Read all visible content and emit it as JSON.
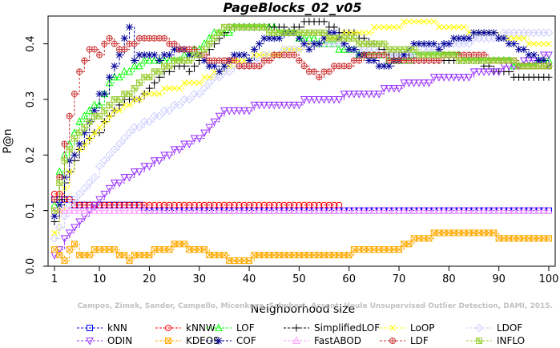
{
  "chart_data": {
    "type": "line",
    "title": "PageBlocks_02_v05",
    "xlabel": "Neighborhood size",
    "ylabel": "P@n",
    "xlim": [
      1,
      100
    ],
    "ylim": [
      0,
      0.45
    ],
    "xticks": [
      1,
      10,
      20,
      30,
      40,
      50,
      60,
      70,
      80,
      90,
      100
    ],
    "yticks": [
      0.0,
      0.1,
      0.2,
      0.3,
      0.4
    ],
    "xtick_labels": [
      "1",
      "10",
      "20",
      "30",
      "40",
      "50",
      "60",
      "70",
      "80",
      "90",
      "100"
    ],
    "ytick_labels": [
      "0.0",
      "0.1",
      "0.2",
      "0.3",
      "0.4"
    ],
    "grid": false,
    "legend_position": "bottom",
    "watermark": "Campos, Zimek, Sander, Campello, Micenkova, Schubert, Assent, Houle Unsupervised Outlier Detection, DAMI, 2015.",
    "series": [
      {
        "name": "kNN",
        "color": "#0000ff",
        "marker": "square",
        "x": [
          1,
          4,
          5,
          8,
          10,
          15,
          18,
          19,
          20,
          30,
          40,
          50,
          60,
          70,
          80,
          90,
          100
        ],
        "values": [
          0.12,
          0.12,
          0.11,
          0.11,
          0.11,
          0.11,
          0.11,
          0.1,
          0.1,
          0.1,
          0.1,
          0.1,
          0.1,
          0.1,
          0.1,
          0.1,
          0.1
        ]
      },
      {
        "name": "kNNW",
        "color": "#ff0000",
        "marker": "circle",
        "x": [
          1,
          4,
          5,
          8,
          10,
          15,
          20,
          25,
          30,
          35,
          40,
          45,
          50,
          55,
          58
        ],
        "values": [
          0.13,
          0.12,
          0.11,
          0.11,
          0.11,
          0.11,
          0.11,
          0.11,
          0.11,
          0.11,
          0.11,
          0.11,
          0.11,
          0.11,
          0.11
        ]
      },
      {
        "name": "LOF",
        "color": "#00ff00",
        "marker": "triangle-up",
        "x": [
          1,
          2,
          3,
          4,
          5,
          6,
          7,
          8,
          10,
          12,
          14,
          16,
          18,
          20,
          22,
          25,
          28,
          30,
          32,
          34,
          36,
          38,
          40,
          42,
          44,
          46,
          48,
          50,
          52,
          54,
          56,
          58,
          60,
          62,
          64,
          66,
          68,
          70,
          75,
          80,
          85,
          90,
          95,
          100
        ],
        "values": [
          0.11,
          0.17,
          0.2,
          0.22,
          0.24,
          0.26,
          0.27,
          0.28,
          0.29,
          0.33,
          0.34,
          0.35,
          0.36,
          0.37,
          0.37,
          0.37,
          0.38,
          0.39,
          0.41,
          0.42,
          0.42,
          0.43,
          0.43,
          0.43,
          0.43,
          0.42,
          0.42,
          0.41,
          0.41,
          0.4,
          0.4,
          0.39,
          0.39,
          0.38,
          0.38,
          0.38,
          0.37,
          0.37,
          0.38,
          0.38,
          0.37,
          0.37,
          0.36,
          0.37
        ]
      },
      {
        "name": "SimplifiedLOF",
        "color": "#000000",
        "marker": "plus",
        "x": [
          1,
          2,
          3,
          4,
          5,
          6,
          7,
          8,
          10,
          12,
          14,
          16,
          18,
          20,
          22,
          24,
          26,
          28,
          30,
          32,
          34,
          36,
          38,
          40,
          42,
          44,
          46,
          48,
          50,
          52,
          54,
          56,
          58,
          60,
          62,
          64,
          66,
          68,
          70,
          75,
          80,
          85,
          90,
          95,
          100
        ],
        "values": [
          0.08,
          0.12,
          0.15,
          0.17,
          0.19,
          0.21,
          0.22,
          0.23,
          0.24,
          0.27,
          0.29,
          0.3,
          0.3,
          0.32,
          0.34,
          0.35,
          0.36,
          0.35,
          0.37,
          0.39,
          0.41,
          0.43,
          0.43,
          0.43,
          0.43,
          0.43,
          0.43,
          0.42,
          0.43,
          0.44,
          0.44,
          0.43,
          0.42,
          0.42,
          0.41,
          0.4,
          0.39,
          0.38,
          0.38,
          0.37,
          0.37,
          0.37,
          0.35,
          0.34,
          0.34
        ]
      },
      {
        "name": "LoOP",
        "color": "#ffff00",
        "marker": "x",
        "x": [
          1,
          2,
          3,
          4,
          5,
          6,
          8,
          10,
          12,
          14,
          16,
          18,
          20,
          22,
          24,
          26,
          28,
          30,
          32,
          34,
          36,
          38,
          40,
          42,
          44,
          46,
          48,
          50,
          52,
          54,
          56,
          58,
          60,
          62,
          64,
          66,
          68,
          70,
          72,
          74,
          76,
          78,
          80,
          82,
          84,
          86,
          88,
          90,
          92,
          94,
          96,
          98,
          100
        ],
        "values": [
          0.06,
          0.1,
          0.14,
          0.17,
          0.2,
          0.21,
          0.23,
          0.25,
          0.27,
          0.28,
          0.29,
          0.3,
          0.31,
          0.31,
          0.32,
          0.32,
          0.33,
          0.33,
          0.34,
          0.35,
          0.36,
          0.37,
          0.37,
          0.38,
          0.38,
          0.38,
          0.39,
          0.39,
          0.4,
          0.4,
          0.41,
          0.41,
          0.42,
          0.42,
          0.42,
          0.43,
          0.43,
          0.43,
          0.44,
          0.44,
          0.44,
          0.43,
          0.43,
          0.43,
          0.42,
          0.42,
          0.42,
          0.41,
          0.41,
          0.41,
          0.4,
          0.4,
          0.4
        ]
      },
      {
        "name": "LDOF",
        "color": "#ccccff",
        "marker": "diamond",
        "x": [
          1,
          2,
          3,
          4,
          6,
          8,
          10,
          12,
          14,
          16,
          18,
          20,
          22,
          24,
          26,
          28,
          30,
          32,
          34,
          36,
          38,
          40,
          42,
          44,
          46,
          48,
          50,
          52,
          54,
          56,
          58,
          60,
          62,
          64,
          66,
          68,
          70,
          72,
          74,
          76,
          78,
          80,
          82,
          84,
          86,
          88,
          90,
          92,
          94,
          96,
          98,
          100
        ],
        "values": [
          0.05,
          0.07,
          0.09,
          0.11,
          0.13,
          0.15,
          0.18,
          0.2,
          0.22,
          0.24,
          0.25,
          0.26,
          0.27,
          0.28,
          0.29,
          0.3,
          0.31,
          0.33,
          0.34,
          0.35,
          0.36,
          0.36,
          0.37,
          0.38,
          0.38,
          0.39,
          0.39,
          0.4,
          0.4,
          0.4,
          0.4,
          0.39,
          0.39,
          0.39,
          0.38,
          0.38,
          0.38,
          0.38,
          0.38,
          0.39,
          0.39,
          0.4,
          0.4,
          0.4,
          0.41,
          0.41,
          0.41,
          0.42,
          0.42,
          0.42,
          0.42,
          0.42
        ]
      },
      {
        "name": "ODIN",
        "color": "#9933ff",
        "marker": "triangle-down",
        "x": [
          1,
          2,
          3,
          4,
          5,
          6,
          7,
          8,
          10,
          12,
          14,
          16,
          18,
          20,
          22,
          24,
          26,
          28,
          30,
          32,
          34,
          36,
          38,
          40,
          42,
          44,
          46,
          48,
          50,
          52,
          54,
          56,
          58,
          60,
          62,
          64,
          66,
          68,
          70,
          72,
          74,
          76,
          78,
          80,
          82,
          84,
          86,
          88,
          90,
          92,
          94,
          96,
          98,
          100
        ],
        "values": [
          0.02,
          0.03,
          0.05,
          0.06,
          0.07,
          0.08,
          0.09,
          0.1,
          0.12,
          0.14,
          0.15,
          0.16,
          0.17,
          0.18,
          0.19,
          0.2,
          0.21,
          0.22,
          0.23,
          0.25,
          0.27,
          0.28,
          0.28,
          0.28,
          0.29,
          0.29,
          0.29,
          0.29,
          0.29,
          0.3,
          0.3,
          0.3,
          0.3,
          0.31,
          0.31,
          0.31,
          0.31,
          0.32,
          0.32,
          0.33,
          0.33,
          0.33,
          0.34,
          0.34,
          0.34,
          0.34,
          0.35,
          0.35,
          0.35,
          0.36,
          0.36,
          0.37,
          0.37,
          0.38
        ]
      },
      {
        "name": "KDEOS",
        "color": "#ffaa00",
        "marker": "square-x",
        "x": [
          1,
          2,
          3,
          4,
          5,
          6,
          8,
          10,
          12,
          14,
          16,
          18,
          20,
          22,
          24,
          26,
          28,
          30,
          32,
          34,
          36,
          38,
          40,
          42,
          44,
          46,
          48,
          50,
          52,
          54,
          56,
          58,
          60,
          62,
          64,
          66,
          68,
          70,
          72,
          74,
          76,
          78,
          80,
          82,
          84,
          86,
          88,
          90,
          92,
          94,
          96,
          98,
          100
        ],
        "values": [
          0.03,
          0.02,
          0.01,
          0.03,
          0.04,
          0.02,
          0.02,
          0.03,
          0.03,
          0.02,
          0.01,
          0.02,
          0.02,
          0.03,
          0.03,
          0.04,
          0.03,
          0.03,
          0.02,
          0.02,
          0.01,
          0.01,
          0.01,
          0.02,
          0.02,
          0.02,
          0.02,
          0.02,
          0.02,
          0.02,
          0.02,
          0.02,
          0.02,
          0.03,
          0.03,
          0.03,
          0.03,
          0.03,
          0.04,
          0.05,
          0.05,
          0.06,
          0.06,
          0.06,
          0.06,
          0.06,
          0.06,
          0.05,
          0.05,
          0.05,
          0.05,
          0.05,
          0.05
        ]
      },
      {
        "name": "COF",
        "color": "#000099",
        "marker": "asterisk",
        "x": [
          1,
          2,
          3,
          4,
          5,
          6,
          7,
          8,
          9,
          10,
          11,
          12,
          13,
          14,
          15,
          16,
          17,
          18,
          20,
          22,
          24,
          26,
          28,
          30,
          32,
          34,
          36,
          38,
          40,
          42,
          44,
          46,
          48,
          50,
          52,
          54,
          56,
          58,
          60,
          62,
          64,
          66,
          68,
          70,
          72,
          74,
          76,
          78,
          80,
          82,
          84,
          86,
          88,
          90,
          92,
          94,
          96,
          98,
          100
        ],
        "values": [
          0.09,
          0.11,
          0.16,
          0.19,
          0.2,
          0.22,
          0.24,
          0.26,
          0.28,
          0.31,
          0.31,
          0.34,
          0.36,
          0.38,
          0.41,
          0.43,
          0.37,
          0.38,
          0.38,
          0.37,
          0.38,
          0.39,
          0.38,
          0.38,
          0.36,
          0.35,
          0.37,
          0.38,
          0.37,
          0.4,
          0.41,
          0.41,
          0.42,
          0.41,
          0.39,
          0.4,
          0.42,
          0.41,
          0.39,
          0.38,
          0.37,
          0.36,
          0.36,
          0.37,
          0.39,
          0.4,
          0.4,
          0.39,
          0.4,
          0.41,
          0.41,
          0.42,
          0.42,
          0.41,
          0.4,
          0.39,
          0.38,
          0.37,
          0.36
        ]
      },
      {
        "name": "FastABOD",
        "color": "#ff99ff",
        "marker": "triangle-open",
        "x": [
          1,
          5,
          10,
          15,
          20,
          30,
          40,
          50,
          60,
          70,
          80,
          90,
          100
        ],
        "values": [
          0.1,
          0.1,
          0.1,
          0.1,
          0.1,
          0.1,
          0.1,
          0.1,
          0.1,
          0.1,
          0.1,
          0.1,
          0.1
        ]
      },
      {
        "name": "LDF",
        "color": "#cc3333",
        "marker": "circle-plus",
        "x": [
          1,
          2,
          3,
          4,
          5,
          6,
          7,
          8,
          9,
          10,
          11,
          12,
          13,
          14,
          15,
          16,
          17,
          18,
          20,
          22,
          24,
          26,
          28,
          30,
          32,
          34,
          36,
          38,
          40,
          42,
          44,
          46,
          48,
          50,
          52,
          54,
          56,
          58,
          60,
          62,
          64,
          66,
          68,
          70,
          72,
          74,
          76,
          78,
          80,
          82,
          84,
          86,
          88,
          90,
          92,
          94,
          96,
          98,
          100
        ],
        "values": [
          0.12,
          0.16,
          0.22,
          0.27,
          0.31,
          0.35,
          0.37,
          0.39,
          0.39,
          0.38,
          0.4,
          0.41,
          0.4,
          0.39,
          0.39,
          0.4,
          0.4,
          0.41,
          0.41,
          0.41,
          0.4,
          0.39,
          0.39,
          0.38,
          0.37,
          0.37,
          0.37,
          0.36,
          0.36,
          0.36,
          0.37,
          0.38,
          0.38,
          0.37,
          0.35,
          0.34,
          0.35,
          0.36,
          0.36,
          0.37,
          0.38,
          0.38,
          0.37,
          0.37,
          0.37,
          0.37,
          0.37,
          0.37,
          0.38,
          0.38,
          0.38,
          0.38,
          0.37,
          0.37,
          0.37,
          0.36,
          0.36,
          0.36,
          0.36
        ]
      },
      {
        "name": "INFLO",
        "color": "#99cc33",
        "marker": "square-star",
        "x": [
          1,
          2,
          3,
          4,
          5,
          6,
          7,
          8,
          10,
          12,
          14,
          16,
          18,
          20,
          22,
          24,
          26,
          28,
          30,
          32,
          34,
          36,
          38,
          40,
          42,
          44,
          46,
          48,
          50,
          52,
          54,
          56,
          58,
          60,
          62,
          64,
          66,
          68,
          70,
          72,
          74,
          76,
          78,
          80,
          82,
          84,
          86,
          88,
          90,
          92,
          94,
          96,
          98,
          100
        ],
        "values": [
          0.1,
          0.15,
          0.19,
          0.21,
          0.23,
          0.24,
          0.25,
          0.26,
          0.27,
          0.29,
          0.3,
          0.31,
          0.33,
          0.34,
          0.35,
          0.36,
          0.37,
          0.37,
          0.38,
          0.4,
          0.42,
          0.43,
          0.43,
          0.43,
          0.43,
          0.42,
          0.42,
          0.42,
          0.42,
          0.42,
          0.42,
          0.41,
          0.41,
          0.41,
          0.4,
          0.4,
          0.4,
          0.39,
          0.39,
          0.39,
          0.38,
          0.38,
          0.38,
          0.38,
          0.37,
          0.37,
          0.37,
          0.37,
          0.37,
          0.37,
          0.36,
          0.36,
          0.36,
          0.36
        ]
      }
    ]
  }
}
